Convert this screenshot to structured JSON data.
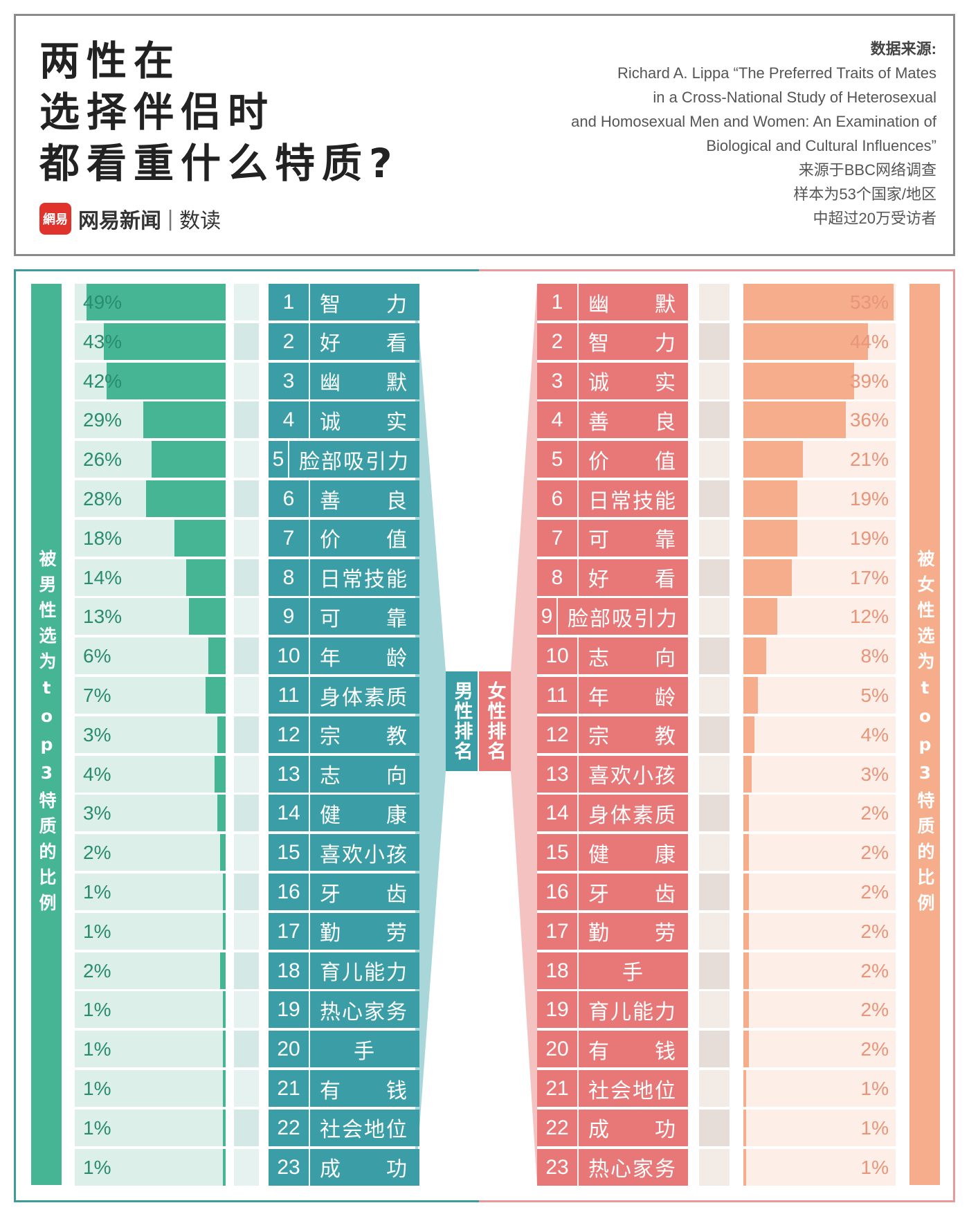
{
  "header": {
    "title_lines": [
      "两性在",
      "选择伴侣时",
      "都看重什么特质?"
    ],
    "brand_logo": "網易",
    "brand_name": "网易新闻",
    "brand_sep": "|",
    "brand_sub": "数读",
    "source_label": "数据来源:",
    "source_lines": [
      "Richard A. Lippa “The Preferred Traits of Mates",
      "in a Cross-National Study of Heterosexual",
      "and Homosexual Men and Women: An Examination of",
      "Biological and Cultural Influences”",
      "来源于BBC网络调查",
      "样本为53个国家/地区",
      "中超过20万受访者"
    ]
  },
  "labels": {
    "left_vertical": "被男性选为top3特质的比例",
    "right_vertical": "被女性选为top3特质的比例",
    "male_rank": "男性排名",
    "female_rank": "女性排名"
  },
  "colors": {
    "male_bar": "#46b594",
    "male_bg": "#dcefe9",
    "male_rank": "#3b9ea6",
    "female_bar": "#f5ad8c",
    "female_bg": "#fdeee7",
    "female_rank": "#e87878"
  },
  "chart_data": [
    {
      "type": "bar",
      "title": "男性排名",
      "ylabel": "被男性选为top3特质的比例",
      "ranks": [
        1,
        2,
        3,
        4,
        5,
        6,
        7,
        8,
        9,
        10,
        11,
        12,
        13,
        14,
        15,
        16,
        17,
        18,
        19,
        20,
        21,
        22,
        23
      ],
      "categories": [
        "智　　力",
        "好　　看",
        "幽　　默",
        "诚　　实",
        "脸部吸引力",
        "善　　良",
        "价　　值",
        "日常技能",
        "可　　靠",
        "年　　龄",
        "身体素质",
        "宗　　教",
        "志　　向",
        "健　　康",
        "喜欢小孩",
        "牙　　齿",
        "勤　　劳",
        "育儿能力",
        "热心家务",
        "手",
        "有　　钱",
        "社会地位",
        "成　　功"
      ],
      "values": [
        49,
        43,
        42,
        29,
        26,
        28,
        18,
        14,
        13,
        6,
        7,
        3,
        4,
        3,
        2,
        1,
        1,
        2,
        1,
        1,
        1,
        1,
        1
      ],
      "labels": [
        "49%",
        "43%",
        "42%",
        "29%",
        "26%",
        "28%",
        "18%",
        "14%",
        "13%",
        "6%",
        "7%",
        "3%",
        "4%",
        "3%",
        "2%",
        "1%",
        "1%",
        "2%",
        "1%",
        "1%",
        "1%",
        "1%",
        "1%"
      ],
      "unit": "%"
    },
    {
      "type": "bar",
      "title": "女性排名",
      "ylabel": "被女性选为top3特质的比例",
      "ranks": [
        1,
        2,
        3,
        4,
        5,
        6,
        7,
        8,
        9,
        10,
        11,
        12,
        13,
        14,
        15,
        16,
        17,
        18,
        19,
        20,
        21,
        22,
        23
      ],
      "categories": [
        "幽　　默",
        "智　　力",
        "诚　　实",
        "善　　良",
        "价　　值",
        "日常技能",
        "可　　靠",
        "好　　看",
        "脸部吸引力",
        "志　　向",
        "年　　龄",
        "宗　　教",
        "喜欢小孩",
        "身体素质",
        "健　　康",
        "牙　　齿",
        "勤　　劳",
        "手",
        "育儿能力",
        "有　　钱",
        "社会地位",
        "成　　功",
        "热心家务"
      ],
      "values": [
        53,
        44,
        39,
        36,
        21,
        19,
        19,
        17,
        12,
        8,
        5,
        4,
        3,
        2,
        2,
        2,
        2,
        2,
        2,
        2,
        1,
        1,
        1
      ],
      "labels": [
        "53%",
        "44%",
        "39%",
        "36%",
        "21%",
        "19%",
        "19%",
        "17%",
        "12%",
        "8%",
        "5%",
        "4%",
        "3%",
        "2%",
        "2%",
        "2%",
        "2%",
        "2%",
        "2%",
        "2%",
        "1%",
        "1%",
        "1%"
      ],
      "unit": "%"
    }
  ]
}
